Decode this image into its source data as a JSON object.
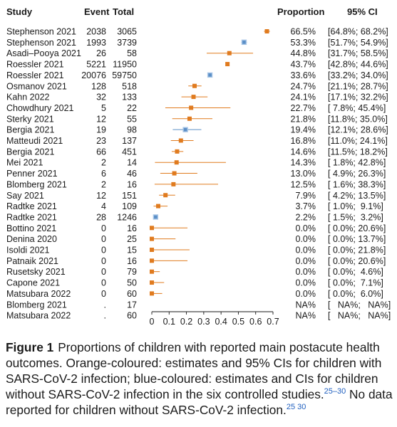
{
  "headers": {
    "study": "Study",
    "event": "Event",
    "total": "Total",
    "proportion": "Proportion",
    "ci": "95% CI"
  },
  "chart_data": {
    "type": "forest",
    "xlim": [
      0,
      0.7
    ],
    "xticks": [
      "0",
      "0.1",
      "0.2",
      "0.3",
      "0.4",
      "0.5",
      "0.6",
      "0.7"
    ],
    "colors": {
      "orange": "#e07b1f",
      "blue": "#5b8fc7"
    },
    "rows": [
      {
        "study": "Stephenson 2021",
        "event": "2038",
        "total": "3065",
        "prop": "66.5%",
        "ci": "[64.8%; 68.2%]",
        "est": 0.665,
        "lo": 0.648,
        "hi": 0.682,
        "color": "orange"
      },
      {
        "study": "Stephenson 2021",
        "event": "1993",
        "total": "3739",
        "prop": "53.3%",
        "ci": "[51.7%; 54.9%]",
        "est": 0.533,
        "lo": 0.517,
        "hi": 0.549,
        "color": "blue"
      },
      {
        "study": "Asadi–Pooya 2021",
        "event": "26",
        "total": "58",
        "prop": "44.8%",
        "ci": "[31.7%; 58.5%]",
        "est": 0.448,
        "lo": 0.317,
        "hi": 0.585,
        "color": "orange"
      },
      {
        "study": "Roessler 2021",
        "event": "5221",
        "total": "11950",
        "prop": "43.7%",
        "ci": "[42.8%; 44.6%]",
        "est": 0.437,
        "lo": 0.428,
        "hi": 0.446,
        "color": "orange"
      },
      {
        "study": "Roessler 2021",
        "event": "20076",
        "total": "59750",
        "prop": "33.6%",
        "ci": "[33.2%; 34.0%]",
        "est": 0.336,
        "lo": 0.332,
        "hi": 0.34,
        "color": "blue"
      },
      {
        "study": "Osmanov 2021",
        "event": "128",
        "total": "518",
        "prop": "24.7%",
        "ci": "[21.1%; 28.7%]",
        "est": 0.247,
        "lo": 0.211,
        "hi": 0.287,
        "color": "orange"
      },
      {
        "study": "Kahn 2022",
        "event": "32",
        "total": "133",
        "prop": "24.1%",
        "ci": "[17.1%; 32.2%]",
        "est": 0.241,
        "lo": 0.171,
        "hi": 0.322,
        "color": "orange"
      },
      {
        "study": "Chowdhury 2021",
        "event": "5",
        "total": "22",
        "prop": "22.7%",
        "ci": "[ 7.8%; 45.4%]",
        "est": 0.227,
        "lo": 0.078,
        "hi": 0.454,
        "color": "orange"
      },
      {
        "study": "Sterky 2021",
        "event": "12",
        "total": "55",
        "prop": "21.8%",
        "ci": "[11.8%; 35.0%]",
        "est": 0.218,
        "lo": 0.118,
        "hi": 0.35,
        "color": "orange"
      },
      {
        "study": "Bergia 2021",
        "event": "19",
        "total": "98",
        "prop": "19.4%",
        "ci": "[12.1%; 28.6%]",
        "est": 0.194,
        "lo": 0.121,
        "hi": 0.286,
        "color": "blue"
      },
      {
        "study": "Matteudi 2021",
        "event": "23",
        "total": "137",
        "prop": "16.8%",
        "ci": "[11.0%; 24.1%]",
        "est": 0.168,
        "lo": 0.11,
        "hi": 0.241,
        "color": "orange"
      },
      {
        "study": "Bergia 2021",
        "event": "66",
        "total": "451",
        "prop": "14.6%",
        "ci": "[11.5%; 18.2%]",
        "est": 0.146,
        "lo": 0.115,
        "hi": 0.182,
        "color": "orange"
      },
      {
        "study": "Mei 2021",
        "event": "2",
        "total": "14",
        "prop": "14.3%",
        "ci": "[ 1.8%; 42.8%]",
        "est": 0.143,
        "lo": 0.018,
        "hi": 0.428,
        "color": "orange"
      },
      {
        "study": "Penner 2021",
        "event": "6",
        "total": "46",
        "prop": "13.0%",
        "ci": "[ 4.9%; 26.3%]",
        "est": 0.13,
        "lo": 0.049,
        "hi": 0.263,
        "color": "orange"
      },
      {
        "study": "Blomberg 2021",
        "event": "2",
        "total": "16",
        "prop": "12.5%",
        "ci": "[ 1.6%; 38.3%]",
        "est": 0.125,
        "lo": 0.016,
        "hi": 0.383,
        "color": "orange"
      },
      {
        "study": "Say 2021",
        "event": "12",
        "total": "151",
        "prop": "7.9%",
        "ci": "[ 4.2%; 13.5%]",
        "est": 0.079,
        "lo": 0.042,
        "hi": 0.135,
        "color": "orange"
      },
      {
        "study": "Radtke 2021",
        "event": "4",
        "total": "109",
        "prop": "3.7%",
        "ci": "[ 1.0%;  9.1%]",
        "est": 0.037,
        "lo": 0.01,
        "hi": 0.091,
        "color": "orange"
      },
      {
        "study": "Radtke 2021",
        "event": "28",
        "total": "1246",
        "prop": "2.2%",
        "ci": "[ 1.5%;  3.2%]",
        "est": 0.022,
        "lo": 0.015,
        "hi": 0.032,
        "color": "blue"
      },
      {
        "study": "Bottino 2021",
        "event": "0",
        "total": "16",
        "prop": "0.0%",
        "ci": "[ 0.0%; 20.6%]",
        "est": 0.0,
        "lo": 0.0,
        "hi": 0.206,
        "color": "orange"
      },
      {
        "study": "Denina 2020",
        "event": "0",
        "total": "25",
        "prop": "0.0%",
        "ci": "[ 0.0%; 13.7%]",
        "est": 0.0,
        "lo": 0.0,
        "hi": 0.137,
        "color": "orange"
      },
      {
        "study": "Isoldi 2021",
        "event": "0",
        "total": "15",
        "prop": "0.0%",
        "ci": "[ 0.0%; 21.8%]",
        "est": 0.0,
        "lo": 0.0,
        "hi": 0.218,
        "color": "orange"
      },
      {
        "study": "Patnaik 2021",
        "event": "0",
        "total": "16",
        "prop": "0.0%",
        "ci": "[ 0.0%; 20.6%]",
        "est": 0.0,
        "lo": 0.0,
        "hi": 0.206,
        "color": "orange"
      },
      {
        "study": "Rusetsky 2021",
        "event": "0",
        "total": "79",
        "prop": "0.0%",
        "ci": "[ 0.0%;  4.6%]",
        "est": 0.0,
        "lo": 0.0,
        "hi": 0.046,
        "color": "orange"
      },
      {
        "study": "Capone 2021",
        "event": "0",
        "total": "50",
        "prop": "0.0%",
        "ci": "[ 0.0%;  7.1%]",
        "est": 0.0,
        "lo": 0.0,
        "hi": 0.071,
        "color": "orange"
      },
      {
        "study": "Matsubara 2022",
        "event": "0",
        "total": "60",
        "prop": "0.0%",
        "ci": "[ 0.0%;  6.0%]",
        "est": 0.0,
        "lo": 0.0,
        "hi": 0.06,
        "color": "orange"
      },
      {
        "study": "Blomberg 2021",
        "event": ".",
        "total": "17",
        "prop": "NA%",
        "ci": "[   NA%;   NA%]",
        "est": null,
        "lo": null,
        "hi": null,
        "color": "none"
      },
      {
        "study": "Matsubara 2022",
        "event": ".",
        "total": "60",
        "prop": "NA%",
        "ci": "[   NA%;   NA%]",
        "est": null,
        "lo": null,
        "hi": null,
        "color": "none"
      }
    ]
  },
  "caption": {
    "label": "Figure 1",
    "text": "Proportions of children with reported main postacute health outcomes. Orange-coloured: estimates and 95% CIs for children with SARS-CoV-2 infection; blue-coloured: estimates and CIs for children without SARS-CoV-2 infection in the six controlled studies.",
    "refs_1": "25–30",
    "text_2": " No data reported for children without SARS-CoV-2 infection.",
    "refs_2": "25 30"
  }
}
